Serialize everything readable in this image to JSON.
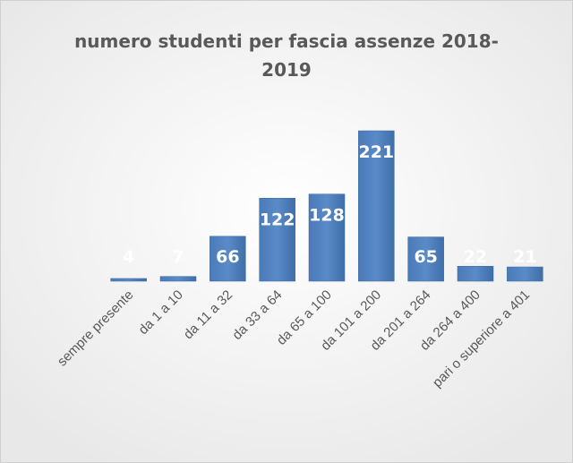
{
  "chart_data": {
    "type": "bar",
    "title": "numero studenti per fascia assenze 2018-2019",
    "categories": [
      "sempre presente",
      "da 1 a 10",
      "da 11 a 32",
      "da 33 a 64",
      "da 65 a 100",
      "da 101 a 200",
      "da 201 a 264",
      "da 264 a 400",
      "pari o superiore a 401"
    ],
    "values": [
      4,
      7,
      66,
      122,
      128,
      221,
      65,
      22,
      21
    ],
    "color": "#4f81bd",
    "grid": false
  }
}
